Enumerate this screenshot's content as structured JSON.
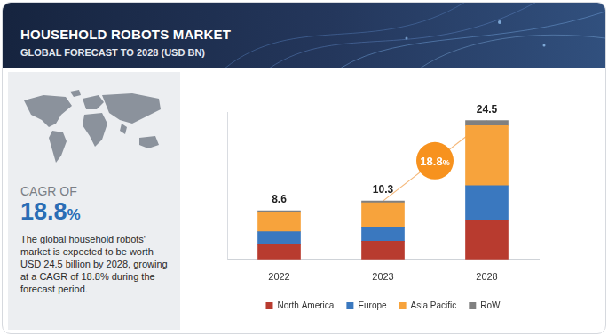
{
  "chart_data": {
    "type": "bar",
    "stacked": true,
    "title": "HOUSEHOLD ROBOTS MARKET",
    "subtitle": "GLOBAL FORECAST TO 2028 (USD BN)",
    "categories": [
      "2022",
      "2023",
      "2028"
    ],
    "series": [
      {
        "name": "North America",
        "color": "#b83b2f",
        "values": [
          2.6,
          3.2,
          6.9
        ]
      },
      {
        "name": "Europe",
        "color": "#3a78bf",
        "values": [
          2.3,
          2.5,
          6.1
        ]
      },
      {
        "name": "Asia Pacific",
        "color": "#f7a33c",
        "values": [
          3.4,
          4.3,
          10.6
        ]
      },
      {
        "name": "RoW",
        "color": "#808080",
        "values": [
          0.3,
          0.3,
          0.9
        ]
      }
    ],
    "totals": [
      8.6,
      10.3,
      24.5
    ],
    "annotations": [
      {
        "text": "18.8%"
      }
    ],
    "ylim": [
      0,
      26
    ],
    "tick_labels": "x",
    "grid": false,
    "legend": "bottom"
  },
  "sidebar": {
    "cagr_label": "CAGR OF",
    "cagr_value": "18.8%",
    "description": "The global household robots' market is expected to be worth USD 24.5 billion by 2028, growing at a CAGR of 18.8% during the forecast period."
  }
}
